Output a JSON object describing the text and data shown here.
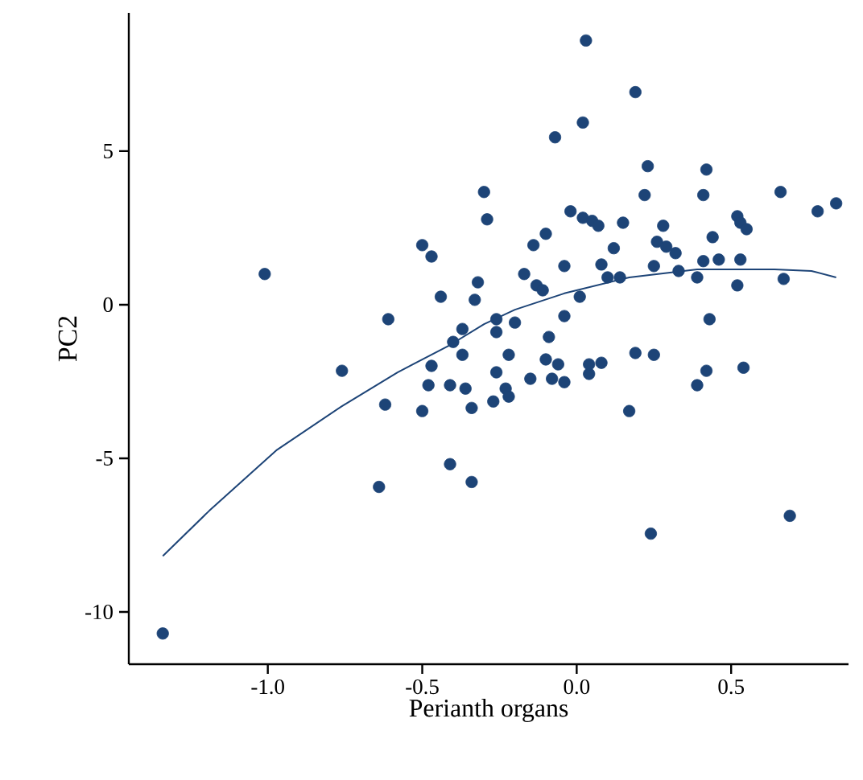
{
  "chart_data": {
    "type": "scatter",
    "xlabel": "Perianth organs",
    "ylabel": "PC2",
    "xlim": [
      -1.45,
      0.88
    ],
    "ylim": [
      -11.7,
      9.5
    ],
    "xticks": [
      {
        "value": -1,
        "label": "-1.0"
      },
      {
        "value": -0.5,
        "label": "-0.5"
      },
      {
        "value": 0,
        "label": "0.0"
      },
      {
        "value": 0.5,
        "label": "0.5"
      }
    ],
    "yticks": [
      5,
      0,
      -5,
      -10
    ],
    "grid": false,
    "marker": "circle",
    "series": [
      {
        "color": "#1d4477",
        "x": [
          -1.34,
          -1.01,
          -0.76,
          -0.64,
          -0.62,
          -0.61,
          -0.5,
          -0.47,
          -0.5,
          -0.48,
          -0.47,
          -0.44,
          -0.41,
          -0.41,
          -0.4,
          -0.37,
          -0.37,
          -0.36,
          -0.34,
          -0.34,
          -0.33,
          -0.32,
          -0.3,
          -0.29,
          -0.27,
          -0.26,
          -0.26,
          -0.26,
          -0.23,
          -0.22,
          -0.22,
          -0.2,
          -0.17,
          -0.15,
          -0.14,
          -0.13,
          -0.11,
          -0.1,
          -0.1,
          -0.09,
          -0.08,
          -0.07,
          -0.06,
          -0.04,
          -0.04,
          -0.04,
          -0.02,
          0.01,
          0.02,
          0.02,
          0.03,
          0.04,
          0.04,
          0.05,
          0.07,
          0.08,
          0.08,
          0.1,
          0.12,
          0.14,
          0.15,
          0.17,
          0.19,
          0.19,
          0.22,
          0.23,
          0.24,
          0.25,
          0.25,
          0.26,
          0.28,
          0.29,
          0.32,
          0.33,
          0.39,
          0.39,
          0.41,
          0.41,
          0.42,
          0.42,
          0.43,
          0.44,
          0.46,
          0.52,
          0.53,
          0.55,
          0.52,
          0.53,
          0.54,
          0.66,
          0.67,
          0.69,
          0.78,
          0.84
        ],
        "values": [
          -10.7,
          1.0,
          -2.15,
          -5.93,
          -3.25,
          -0.47,
          1.94,
          1.57,
          -3.46,
          -2.62,
          -1.99,
          0.26,
          -5.19,
          -2.62,
          -1.21,
          -1.63,
          -0.79,
          -2.73,
          -3.36,
          -5.77,
          0.16,
          0.73,
          3.67,
          2.78,
          -3.15,
          -2.2,
          -0.89,
          -0.47,
          -2.73,
          -1.63,
          -2.99,
          -0.58,
          1.0,
          -2.41,
          1.94,
          0.63,
          0.47,
          -1.78,
          2.31,
          -1.05,
          -2.41,
          5.45,
          -1.94,
          -2.52,
          1.26,
          -0.37,
          3.04,
          0.26,
          2.83,
          5.93,
          8.6,
          -2.25,
          -1.94,
          2.73,
          2.57,
          1.31,
          -1.89,
          0.89,
          1.84,
          0.89,
          2.67,
          -3.46,
          6.92,
          -1.57,
          3.57,
          4.51,
          -7.45,
          1.26,
          -1.63,
          2.05,
          2.57,
          1.89,
          1.68,
          1.1,
          0.89,
          -2.62,
          3.57,
          1.42,
          4.4,
          -2.15,
          -0.47,
          2.2,
          1.47,
          2.88,
          2.67,
          2.46,
          0.63,
          1.47,
          -2.05,
          3.67,
          0.84,
          -6.87,
          3.04,
          3.3
        ]
      },
      {
        "type": "line",
        "color": "#1d4477",
        "marker": "none",
        "line_style": "solid",
        "x": [
          -1.34,
          -1.19,
          -0.97,
          -0.76,
          -0.58,
          -0.41,
          -0.3,
          -0.2,
          -0.04,
          0.17,
          0.39,
          0.64,
          0.76,
          0.84
        ],
        "values": [
          -8.18,
          -6.71,
          -4.72,
          -3.3,
          -2.2,
          -1.31,
          -0.63,
          -0.16,
          0.37,
          0.89,
          1.15,
          1.15,
          1.1,
          0.89
        ]
      }
    ]
  }
}
